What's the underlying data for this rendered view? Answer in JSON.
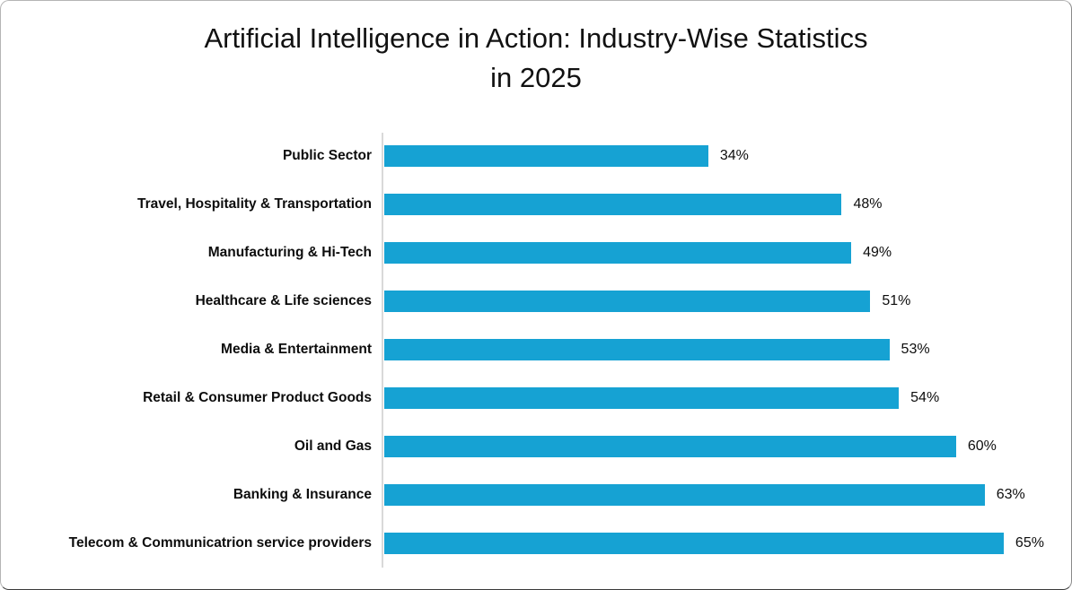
{
  "chart_data": {
    "type": "bar",
    "orientation": "horizontal",
    "title": "Artificial Intelligence in Action: Industry-Wise Statistics in 2025",
    "title_lines": [
      "Artificial Intelligence in Action: Industry-Wise Statistics",
      "in 2025"
    ],
    "categories": [
      "Public Sector",
      "Travel, Hospitality & Transportation",
      "Manufacturing & Hi-Tech",
      "Healthcare & Life sciences",
      "Media & Entertainment",
      "Retail & Consumer Product Goods",
      "Oil and Gas",
      "Banking & Insurance",
      "Telecom & Communicatrion service providers"
    ],
    "values": [
      34,
      48,
      49,
      51,
      53,
      54,
      60,
      63,
      65
    ],
    "value_labels": [
      "34%",
      "48%",
      "49%",
      "51%",
      "53%",
      "54%",
      "60%",
      "63%",
      "65%"
    ],
    "xlabel": "",
    "ylabel": "",
    "xlim": [
      0,
      70
    ],
    "grid": false,
    "legend": false,
    "bar_color": "#16a2d3",
    "axis_line_color": "#d9d9d9",
    "text_color": "#0d0d0d",
    "background_color": "#ffffff"
  }
}
